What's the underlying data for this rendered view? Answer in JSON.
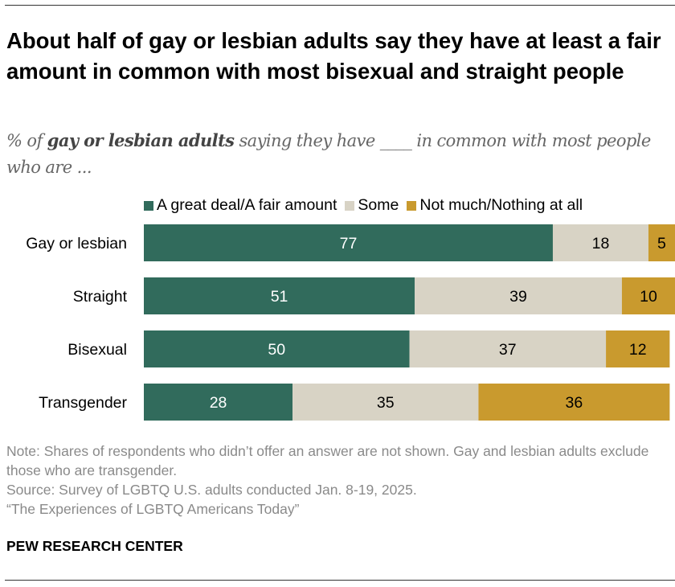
{
  "title": "About half of gay or lesbian adults say they have at least a fair amount in common with most bisexual and straight people",
  "subtitle": {
    "pre": "% of ",
    "bold": "gay or lesbian adults",
    "post": " saying they have ____ in common with most people who are ..."
  },
  "chart_data": {
    "type": "bar",
    "orientation": "horizontal",
    "stacked": true,
    "categories": [
      "Gay or lesbian",
      "Straight",
      "Bisexual",
      "Transgender"
    ],
    "series": [
      {
        "name": "A great deal/A fair amount",
        "color": "#316b5c",
        "values": [
          77,
          51,
          50,
          28
        ]
      },
      {
        "name": "Some",
        "color": "#d8d3c5",
        "values": [
          18,
          39,
          37,
          35
        ]
      },
      {
        "name": "Not much/Nothing at all",
        "color": "#c99a2e",
        "values": [
          5,
          10,
          12,
          36
        ]
      }
    ],
    "xlim": [
      0,
      100
    ],
    "legend": "top",
    "grid": false
  },
  "notes": {
    "note": "Note: Shares of respondents who didn’t offer an answer are not shown. Gay and lesbian adults exclude those who are transgender.",
    "source": "Source: Survey of LGBTQ U.S. adults conducted Jan. 8-19, 2025.",
    "report": "“The Experiences of LGBTQ Americans Today”"
  },
  "brand": "PEW RESEARCH CENTER"
}
